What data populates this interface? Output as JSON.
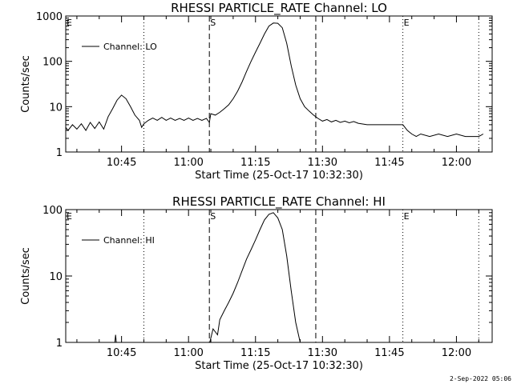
{
  "footer_timestamp": "2-Sep-2022 05:06",
  "colors": {
    "background": "#ffffff",
    "ink": "#000000"
  },
  "chart_data": [
    {
      "type": "line",
      "title": "RHESSI PARTICLE_RATE Channel: LO",
      "xlabel": "Start Time (25-Oct-17 10:32:30)",
      "ylabel": "Counts/sec",
      "yscale": "log",
      "ylim": [
        1,
        1000
      ],
      "xlim": [
        "10:32:30",
        "12:08:00"
      ],
      "x_tick_labels": [
        "10:45",
        "11:00",
        "11:15",
        "11:30",
        "11:45",
        "12:00"
      ],
      "y_tick_labels": [
        "1",
        "10",
        "100",
        "1000"
      ],
      "legend": {
        "entries": [
          "Channel: LO"
        ],
        "position": "top-left"
      },
      "markers": [
        {
          "label": "E",
          "time": "10:32:30",
          "style": "dotted"
        },
        {
          "label": "",
          "time": "10:50:00",
          "style": "dotted"
        },
        {
          "label": "S",
          "time": "11:04:40",
          "style": "dashed"
        },
        {
          "label": "",
          "time": "11:28:30",
          "style": "dashed"
        },
        {
          "label": "E",
          "time": "11:48:00",
          "style": "dotted"
        },
        {
          "label": "",
          "time": "12:05:00",
          "style": "dotted"
        }
      ],
      "series": [
        {
          "name": "Channel: LO",
          "points": [
            [
              "10:32:30",
              3.5
            ],
            [
              "10:33:00",
              3.0
            ],
            [
              "10:34:00",
              4.0
            ],
            [
              "10:35:00",
              3.2
            ],
            [
              "10:36:00",
              4.2
            ],
            [
              "10:37:00",
              3.0
            ],
            [
              "10:38:00",
              4.5
            ],
            [
              "10:39:00",
              3.3
            ],
            [
              "10:40:00",
              4.6
            ],
            [
              "10:41:00",
              3.2
            ],
            [
              "10:42:00",
              6.0
            ],
            [
              "10:43:00",
              9.0
            ],
            [
              "10:44:00",
              14.0
            ],
            [
              "10:45:00",
              18.0
            ],
            [
              "10:46:00",
              15.0
            ],
            [
              "10:47:00",
              10.0
            ],
            [
              "10:48:00",
              6.5
            ],
            [
              "10:49:00",
              5.0
            ],
            [
              "10:49:30",
              3.5
            ],
            [
              "10:50:00",
              4.2
            ],
            [
              "10:51:00",
              5.0
            ],
            [
              "10:52:00",
              5.6
            ],
            [
              "10:53:00",
              5.0
            ],
            [
              "10:54:00",
              5.8
            ],
            [
              "10:55:00",
              5.0
            ],
            [
              "10:56:00",
              5.6
            ],
            [
              "10:57:00",
              5.0
            ],
            [
              "10:58:00",
              5.5
            ],
            [
              "10:59:00",
              5.0
            ],
            [
              "11:00:00",
              5.6
            ],
            [
              "11:01:00",
              5.0
            ],
            [
              "11:02:00",
              5.5
            ],
            [
              "11:03:00",
              5.0
            ],
            [
              "11:04:00",
              5.5
            ],
            [
              "11:04:40",
              4.5
            ],
            [
              "11:05:00",
              7.0
            ],
            [
              "11:06:00",
              6.5
            ],
            [
              "11:07:00",
              7.5
            ],
            [
              "11:08:00",
              9.0
            ],
            [
              "11:09:00",
              11.0
            ],
            [
              "11:10:00",
              15.0
            ],
            [
              "11:11:00",
              22.0
            ],
            [
              "11:12:00",
              35.0
            ],
            [
              "11:13:00",
              60.0
            ],
            [
              "11:14:00",
              100.0
            ],
            [
              "11:15:00",
              160.0
            ],
            [
              "11:16:00",
              250.0
            ],
            [
              "11:17:00",
              400.0
            ],
            [
              "11:18:00",
              600.0
            ],
            [
              "11:19:00",
              700.0
            ],
            [
              "11:20:00",
              690.0
            ],
            [
              "11:21:00",
              550.0
            ],
            [
              "11:22:00",
              250.0
            ],
            [
              "11:23:00",
              80.0
            ],
            [
              "11:24:00",
              30.0
            ],
            [
              "11:25:00",
              15.0
            ],
            [
              "11:26:00",
              10.0
            ],
            [
              "11:27:00",
              8.0
            ],
            [
              "11:28:00",
              6.5
            ],
            [
              "11:29:00",
              5.5
            ],
            [
              "11:30:00",
              4.8
            ],
            [
              "11:31:00",
              5.2
            ],
            [
              "11:32:00",
              4.6
            ],
            [
              "11:33:00",
              5.0
            ],
            [
              "11:34:00",
              4.5
            ],
            [
              "11:35:00",
              4.8
            ],
            [
              "11:36:00",
              4.4
            ],
            [
              "11:37:00",
              4.7
            ],
            [
              "11:38:00",
              4.3
            ],
            [
              "11:40:00",
              4.0
            ],
            [
              "11:44:00",
              4.0
            ],
            [
              "11:48:00",
              4.0
            ],
            [
              "11:49:00",
              3.0
            ],
            [
              "11:50:00",
              2.5
            ],
            [
              "11:51:00",
              2.2
            ],
            [
              "11:52:00",
              2.5
            ],
            [
              "11:54:00",
              2.2
            ],
            [
              "11:56:00",
              2.5
            ],
            [
              "11:58:00",
              2.2
            ],
            [
              "12:00:00",
              2.5
            ],
            [
              "12:02:00",
              2.2
            ],
            [
              "12:05:00",
              2.2
            ],
            [
              "12:06:00",
              2.5
            ]
          ]
        }
      ]
    },
    {
      "type": "line",
      "title": "RHESSI PARTICLE_RATE Channel: HI",
      "xlabel": "Start Time (25-Oct-17 10:32:30)",
      "ylabel": "Counts/sec",
      "yscale": "log",
      "ylim": [
        1,
        100
      ],
      "xlim": [
        "10:32:30",
        "12:08:00"
      ],
      "x_tick_labels": [
        "10:45",
        "11:00",
        "11:15",
        "11:30",
        "11:45",
        "12:00"
      ],
      "y_tick_labels": [
        "1",
        "10",
        "100"
      ],
      "legend": {
        "entries": [
          "Channel: HI"
        ],
        "position": "top-left"
      },
      "markers": [
        {
          "label": "E",
          "time": "10:32:30",
          "style": "dotted"
        },
        {
          "label": "",
          "time": "10:50:00",
          "style": "dotted"
        },
        {
          "label": "S",
          "time": "11:04:40",
          "style": "dashed"
        },
        {
          "label": "",
          "time": "11:28:30",
          "style": "dashed"
        },
        {
          "label": "E",
          "time": "11:48:00",
          "style": "dotted"
        },
        {
          "label": "",
          "time": "12:05:00",
          "style": "dotted"
        }
      ],
      "series": [
        {
          "name": "Channel: HI",
          "points": [
            [
              "10:43:30",
              1.0
            ],
            [
              "10:43:40",
              1.3
            ],
            [
              "10:43:50",
              1.0
            ]
          ]
        },
        {
          "name": "Channel: HI",
          "points": [
            [
              "11:04:45",
              1.0
            ],
            [
              "11:05:30",
              1.6
            ],
            [
              "11:06:30",
              1.3
            ],
            [
              "11:07:00",
              2.2
            ],
            [
              "11:08:00",
              3.0
            ],
            [
              "11:09:00",
              4.0
            ],
            [
              "11:10:00",
              5.5
            ],
            [
              "11:11:00",
              8.0
            ],
            [
              "11:12:00",
              12.0
            ],
            [
              "11:13:00",
              18.0
            ],
            [
              "11:14:00",
              25.0
            ],
            [
              "11:15:00",
              35.0
            ],
            [
              "11:16:00",
              50.0
            ],
            [
              "11:17:00",
              70.0
            ],
            [
              "11:18:00",
              85.0
            ],
            [
              "11:19:00",
              90.0
            ],
            [
              "11:20:00",
              75.0
            ],
            [
              "11:21:00",
              50.0
            ],
            [
              "11:22:00",
              20.0
            ],
            [
              "11:23:00",
              6.0
            ],
            [
              "11:24:00",
              2.0
            ],
            [
              "11:25:00",
              1.0
            ]
          ]
        }
      ]
    }
  ]
}
